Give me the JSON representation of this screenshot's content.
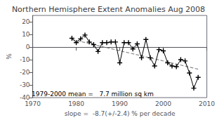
{
  "chart_data": {
    "type": "line",
    "title": "Northern Hemisphere Extent Anomalies Aug 2008",
    "xlabel": "slope =  -8.7(+/-2.4) % per decade",
    "ylabel": "%",
    "annotations": [
      "1979-2000 mean =   7.7 million sq km"
    ],
    "xlim": [
      1970,
      2010
    ],
    "ylim": [
      -40,
      25
    ],
    "xticks": [
      1970,
      1980,
      1990,
      2000,
      2010
    ],
    "yticks": [
      -40,
      -30,
      -20,
      -10,
      0,
      10,
      20
    ],
    "grid": false,
    "series": [
      {
        "x": [
          1979,
          1980,
          1981,
          1982,
          1983,
          1984,
          1985,
          1986,
          1987,
          1988,
          1989,
          1990,
          1991,
          1992,
          1993,
          1994,
          1995,
          1996,
          1997,
          1998,
          1999,
          2000,
          2001,
          2002,
          2003,
          2004,
          2005,
          2006,
          2007,
          2008
        ],
        "values": [
          7.0,
          3.5,
          6.5,
          9.5,
          4.0,
          2.0,
          -3.5,
          3.5,
          3.5,
          4.0,
          4.0,
          -12.5,
          3.5,
          3.5,
          -1.5,
          2.5,
          -8.5,
          6.0,
          -8.5,
          -15.0,
          -2.0,
          -3.0,
          -12.5,
          -15.0,
          -15.5,
          -10.0,
          -11.0,
          -20.5,
          -32.5,
          -24.0
        ],
        "color": "#000000",
        "marker": "+",
        "line_style": "solid"
      },
      {
        "x": [
          1979,
          2008
        ],
        "values": [
          6.0,
          -17.5
        ],
        "color": "#888888",
        "marker": "none",
        "line_style": "dashed"
      }
    ]
  }
}
